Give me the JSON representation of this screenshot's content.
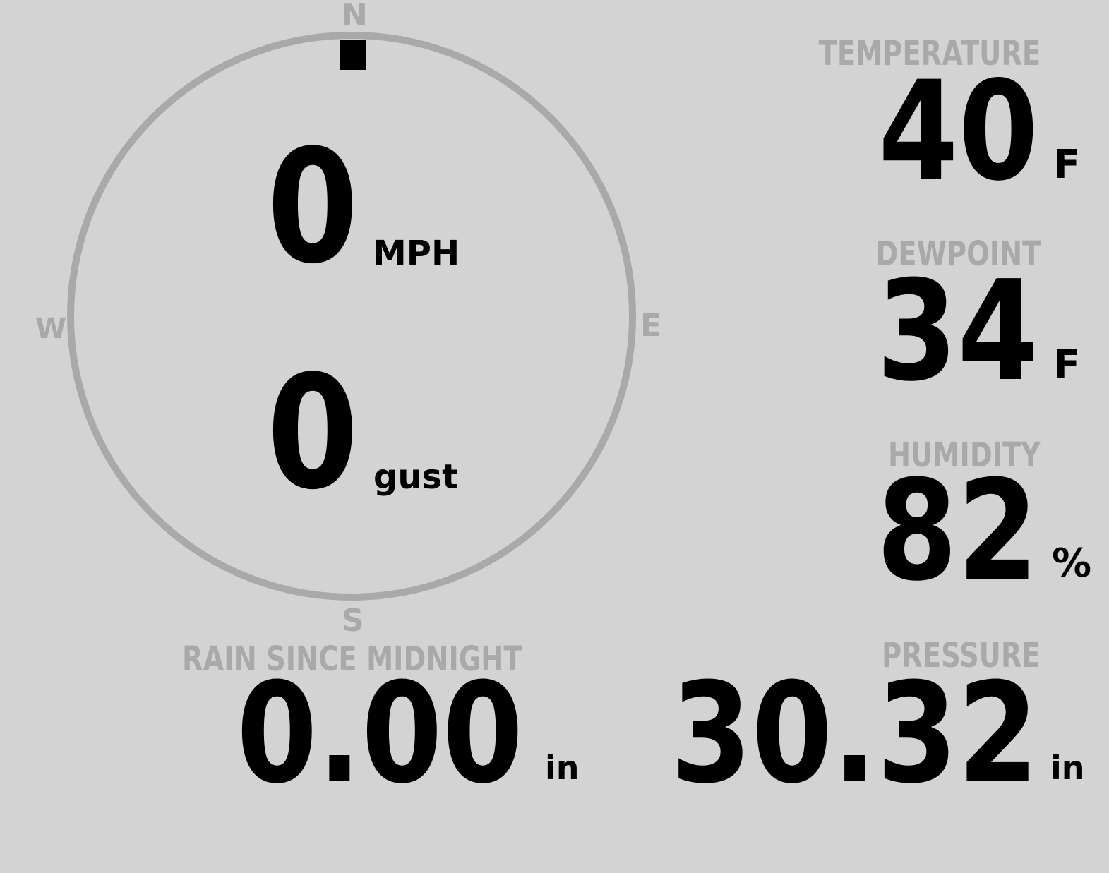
{
  "colors": {
    "background": "#d3d3d3",
    "label": "#a9a9a9",
    "value": "#000000"
  },
  "compass": {
    "n": "N",
    "s": "S",
    "e": "E",
    "w": "W",
    "wind_direction_deg": 0
  },
  "wind": {
    "speed": "0",
    "speed_unit": "MPH",
    "gust": "0",
    "gust_unit": "gust"
  },
  "temperature": {
    "label": "TEMPERATURE",
    "value": "40",
    "unit": "F"
  },
  "dewpoint": {
    "label": "DEWPOINT",
    "value": "34",
    "unit": "F"
  },
  "humidity": {
    "label": "HUMIDITY",
    "value": "82",
    "unit": "%"
  },
  "rain": {
    "label": "RAIN SINCE MIDNIGHT",
    "value": "0.00",
    "unit": "in"
  },
  "pressure": {
    "label": "PRESSURE",
    "value": "30.32",
    "unit": "in"
  }
}
